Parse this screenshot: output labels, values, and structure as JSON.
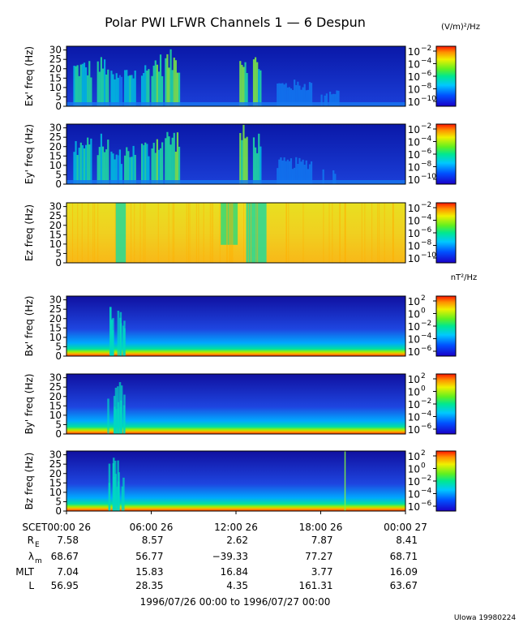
{
  "chart_data": {
    "type": "heatmap",
    "title": "Polar PWI LFWR Channels 1 — 6 Despun",
    "x_tick_labels": [
      "SCET00:00 26",
      "06:00 26",
      "12:00 26",
      "18:00 26",
      "00:00 27"
    ],
    "ephemeris": [
      {
        "label": "R",
        "sub": "E",
        "values": [
          "7.58",
          "8.57",
          "2.62",
          "7.87",
          "8.41"
        ]
      },
      {
        "label": "λ",
        "sub": "m",
        "values": [
          "68.67",
          "56.77",
          "−39.33",
          "77.27",
          "68.71"
        ]
      },
      {
        "label": "MLT",
        "sub": "",
        "values": [
          "7.04",
          "15.83",
          "16.84",
          "3.77",
          "16.09"
        ]
      },
      {
        "label": "L",
        "sub": "",
        "values": [
          "56.95",
          "28.35",
          "4.35",
          "161.31",
          "63.67"
        ]
      }
    ],
    "date_range": "1996/07/26 00:00 to 1996/07/27 00:00",
    "footer": "UIowa 19980224",
    "electric_colorbar_unit": "(V/m)²/Hz",
    "magnetic_colorbar_unit": "nT²/Hz",
    "panels": [
      {
        "ylabel": "Ex' freq (Hz)",
        "yticks": [
          "0",
          "5",
          "10",
          "15",
          "20",
          "25",
          "30"
        ],
        "ylim": [
          0,
          32
        ],
        "cbar_ticks": [
          {
            "base": "10",
            "exp": "−2"
          },
          {
            "base": "10",
            "exp": "−4"
          },
          {
            "base": "10",
            "exp": "−6"
          },
          {
            "base": "10",
            "exp": "−8"
          },
          {
            "base": "10",
            "exp": "−10"
          }
        ]
      },
      {
        "ylabel": "Ey' freq (Hz)",
        "yticks": [
          "0",
          "5",
          "10",
          "15",
          "20",
          "25",
          "30"
        ],
        "ylim": [
          0,
          32
        ],
        "cbar_ticks": [
          {
            "base": "10",
            "exp": "−2"
          },
          {
            "base": "10",
            "exp": "−4"
          },
          {
            "base": "10",
            "exp": "−6"
          },
          {
            "base": "10",
            "exp": "−8"
          },
          {
            "base": "10",
            "exp": "−10"
          }
        ]
      },
      {
        "ylabel": "Ez freq (Hz)",
        "yticks": [
          "0",
          "5",
          "10",
          "15",
          "20",
          "25",
          "30"
        ],
        "ylim": [
          0,
          32
        ],
        "cbar_ticks": [
          {
            "base": "10",
            "exp": "−2"
          },
          {
            "base": "10",
            "exp": "−4"
          },
          {
            "base": "10",
            "exp": "−6"
          },
          {
            "base": "10",
            "exp": "−8"
          },
          {
            "base": "10",
            "exp": "−10"
          }
        ]
      },
      {
        "ylabel": "Bx' freq (Hz)",
        "yticks": [
          "0",
          "5",
          "10",
          "15",
          "20",
          "25",
          "30"
        ],
        "ylim": [
          0,
          32
        ],
        "cbar_ticks": [
          {
            "base": "10",
            "exp": "2"
          },
          {
            "base": "10",
            "exp": "0"
          },
          {
            "base": "10",
            "exp": "−2"
          },
          {
            "base": "10",
            "exp": "−4"
          },
          {
            "base": "10",
            "exp": "−6"
          }
        ]
      },
      {
        "ylabel": "By' freq (Hz)",
        "yticks": [
          "0",
          "5",
          "10",
          "15",
          "20",
          "25",
          "30"
        ],
        "ylim": [
          0,
          32
        ],
        "cbar_ticks": [
          {
            "base": "10",
            "exp": "2"
          },
          {
            "base": "10",
            "exp": "0"
          },
          {
            "base": "10",
            "exp": "−2"
          },
          {
            "base": "10",
            "exp": "−4"
          },
          {
            "base": "10",
            "exp": "−6"
          }
        ]
      },
      {
        "ylabel": "Bz freq (Hz)",
        "yticks": [
          "0",
          "5",
          "10",
          "15",
          "20",
          "25",
          "30"
        ],
        "ylim": [
          0,
          32
        ],
        "cbar_ticks": [
          {
            "base": "10",
            "exp": "2"
          },
          {
            "base": "10",
            "exp": "0"
          },
          {
            "base": "10",
            "exp": "−2"
          },
          {
            "base": "10",
            "exp": "−4"
          },
          {
            "base": "10",
            "exp": "−6"
          }
        ]
      }
    ]
  }
}
